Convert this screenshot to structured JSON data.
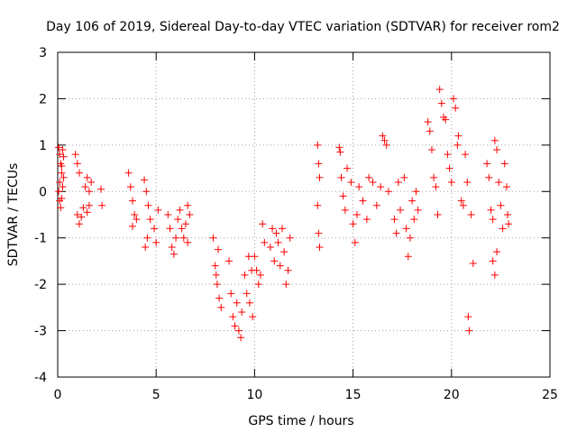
{
  "chart_data": {
    "type": "scatter",
    "title": "Day 106 of 2019, Sidereal Day-to-day VTEC variation (SDTVAR) for receiver rom2",
    "xlabel": "GPS time / hours",
    "ylabel": "SDTVAR / TECUs",
    "xlim": [
      0,
      25
    ],
    "ylim": [
      -4,
      3
    ],
    "xticks": [
      0,
      5,
      10,
      15,
      20,
      25
    ],
    "yticks": [
      -4,
      -3,
      -2,
      -1,
      0,
      1,
      2,
      3
    ],
    "grid": true,
    "marker": "+",
    "color": "#ff0000",
    "series": [
      {
        "name": "SDTVAR",
        "points": [
          [
            0.05,
            0.95
          ],
          [
            0.1,
            0.8
          ],
          [
            0.15,
            0.6
          ],
          [
            0.2,
            0.4
          ],
          [
            0.1,
            0.2
          ],
          [
            0.05,
            0.0
          ],
          [
            0.1,
            -0.2
          ],
          [
            0.15,
            -0.35
          ],
          [
            0.2,
            -0.15
          ],
          [
            0.25,
            0.1
          ],
          [
            0.3,
            0.3
          ],
          [
            0.25,
            0.9
          ],
          [
            0.3,
            0.75
          ],
          [
            0.2,
            0.55
          ],
          [
            0.9,
            0.8
          ],
          [
            1.0,
            0.6
          ],
          [
            1.1,
            0.4
          ],
          [
            1.0,
            -0.5
          ],
          [
            1.1,
            -0.7
          ],
          [
            1.2,
            -0.55
          ],
          [
            1.3,
            -0.35
          ],
          [
            1.4,
            0.1
          ],
          [
            1.5,
            0.3
          ],
          [
            1.6,
            0.0
          ],
          [
            1.7,
            0.2
          ],
          [
            1.6,
            -0.3
          ],
          [
            1.5,
            -0.45
          ],
          [
            2.2,
            0.05
          ],
          [
            2.25,
            -0.3
          ],
          [
            3.6,
            0.4
          ],
          [
            3.7,
            0.1
          ],
          [
            3.8,
            -0.2
          ],
          [
            3.9,
            -0.5
          ],
          [
            3.8,
            -0.75
          ],
          [
            4.0,
            -0.6
          ],
          [
            4.4,
            0.25
          ],
          [
            4.5,
            0.0
          ],
          [
            4.6,
            -0.3
          ],
          [
            4.45,
            -1.2
          ],
          [
            4.55,
            -1.0
          ],
          [
            4.7,
            -0.6
          ],
          [
            4.9,
            -0.8
          ],
          [
            5.0,
            -1.1
          ],
          [
            5.1,
            -0.4
          ],
          [
            5.6,
            -0.5
          ],
          [
            5.7,
            -0.8
          ],
          [
            5.8,
            -1.2
          ],
          [
            5.9,
            -1.35
          ],
          [
            6.0,
            -1.0
          ],
          [
            6.1,
            -0.6
          ],
          [
            6.2,
            -0.4
          ],
          [
            6.3,
            -0.8
          ],
          [
            6.4,
            -1.0
          ],
          [
            6.5,
            -0.7
          ],
          [
            6.6,
            -1.1
          ],
          [
            6.7,
            -0.5
          ],
          [
            6.6,
            -0.3
          ],
          [
            7.9,
            -1.0
          ],
          [
            8.0,
            -1.6
          ],
          [
            8.1,
            -2.0
          ],
          [
            8.2,
            -2.3
          ],
          [
            8.3,
            -2.5
          ],
          [
            8.05,
            -1.8
          ],
          [
            8.15,
            -1.25
          ],
          [
            8.7,
            -1.5
          ],
          [
            8.8,
            -2.2
          ],
          [
            8.9,
            -2.7
          ],
          [
            9.0,
            -2.9
          ],
          [
            9.1,
            -2.4
          ],
          [
            9.2,
            -3.0
          ],
          [
            9.3,
            -3.15
          ],
          [
            9.35,
            -2.6
          ],
          [
            9.5,
            -1.8
          ],
          [
            9.6,
            -2.2
          ],
          [
            9.7,
            -1.4
          ],
          [
            9.85,
            -1.7
          ],
          [
            9.9,
            -2.7
          ],
          [
            9.75,
            -2.4
          ],
          [
            10.0,
            -1.4
          ],
          [
            10.1,
            -1.7
          ],
          [
            10.2,
            -2.0
          ],
          [
            10.3,
            -1.8
          ],
          [
            10.4,
            -0.7
          ],
          [
            10.5,
            -1.1
          ],
          [
            10.8,
            -1.2
          ],
          [
            10.9,
            -0.8
          ],
          [
            11.0,
            -1.5
          ],
          [
            11.1,
            -0.9
          ],
          [
            11.2,
            -1.1
          ],
          [
            11.3,
            -1.6
          ],
          [
            11.4,
            -0.8
          ],
          [
            11.5,
            -1.3
          ],
          [
            11.6,
            -2.0
          ],
          [
            11.7,
            -1.7
          ],
          [
            11.8,
            -1.0
          ],
          [
            13.2,
            1.0
          ],
          [
            13.25,
            0.6
          ],
          [
            13.3,
            0.3
          ],
          [
            13.2,
            -0.3
          ],
          [
            13.25,
            -0.9
          ],
          [
            13.3,
            -1.2
          ],
          [
            14.3,
            0.95
          ],
          [
            14.35,
            0.85
          ],
          [
            14.4,
            0.3
          ],
          [
            14.5,
            -0.1
          ],
          [
            14.6,
            -0.4
          ],
          [
            14.7,
            0.5
          ],
          [
            14.9,
            0.2
          ],
          [
            15.0,
            -0.7
          ],
          [
            15.1,
            -1.1
          ],
          [
            15.2,
            -0.5
          ],
          [
            15.3,
            0.1
          ],
          [
            15.5,
            -0.2
          ],
          [
            15.7,
            -0.6
          ],
          [
            15.8,
            0.3
          ],
          [
            16.0,
            0.2
          ],
          [
            16.2,
            -0.3
          ],
          [
            16.4,
            0.1
          ],
          [
            16.5,
            1.2
          ],
          [
            16.6,
            1.1
          ],
          [
            16.7,
            1.0
          ],
          [
            16.8,
            0.0
          ],
          [
            17.1,
            -0.6
          ],
          [
            17.2,
            -0.9
          ],
          [
            17.3,
            0.2
          ],
          [
            17.4,
            -0.4
          ],
          [
            17.6,
            0.3
          ],
          [
            17.7,
            -0.8
          ],
          [
            17.8,
            -1.4
          ],
          [
            17.9,
            -1.0
          ],
          [
            18.0,
            -0.2
          ],
          [
            18.1,
            -0.6
          ],
          [
            18.2,
            0.0
          ],
          [
            18.3,
            -0.4
          ],
          [
            18.8,
            1.5
          ],
          [
            18.9,
            1.3
          ],
          [
            19.0,
            0.9
          ],
          [
            19.1,
            0.3
          ],
          [
            19.2,
            0.1
          ],
          [
            19.3,
            -0.5
          ],
          [
            19.4,
            2.2
          ],
          [
            19.5,
            1.9
          ],
          [
            19.6,
            1.6
          ],
          [
            19.7,
            1.55
          ],
          [
            19.8,
            0.8
          ],
          [
            19.9,
            0.5
          ],
          [
            20.0,
            0.2
          ],
          [
            20.1,
            2.0
          ],
          [
            20.2,
            1.8
          ],
          [
            20.3,
            1.0
          ],
          [
            20.35,
            1.2
          ],
          [
            20.5,
            -0.2
          ],
          [
            20.6,
            -0.3
          ],
          [
            20.7,
            0.8
          ],
          [
            20.8,
            0.2
          ],
          [
            20.85,
            -2.7
          ],
          [
            20.9,
            -3.0
          ],
          [
            21.0,
            -0.5
          ],
          [
            21.1,
            -1.55
          ],
          [
            21.8,
            0.6
          ],
          [
            21.9,
            0.3
          ],
          [
            22.0,
            -0.4
          ],
          [
            22.1,
            -0.6
          ],
          [
            22.2,
            1.1
          ],
          [
            22.3,
            0.9
          ],
          [
            22.1,
            -1.5
          ],
          [
            22.2,
            -1.8
          ],
          [
            22.3,
            -1.3
          ],
          [
            22.4,
            0.2
          ],
          [
            22.5,
            -0.3
          ],
          [
            22.6,
            -0.8
          ],
          [
            22.7,
            0.6
          ],
          [
            22.8,
            0.1
          ],
          [
            22.85,
            -0.5
          ],
          [
            22.9,
            -0.7
          ]
        ]
      }
    ]
  }
}
